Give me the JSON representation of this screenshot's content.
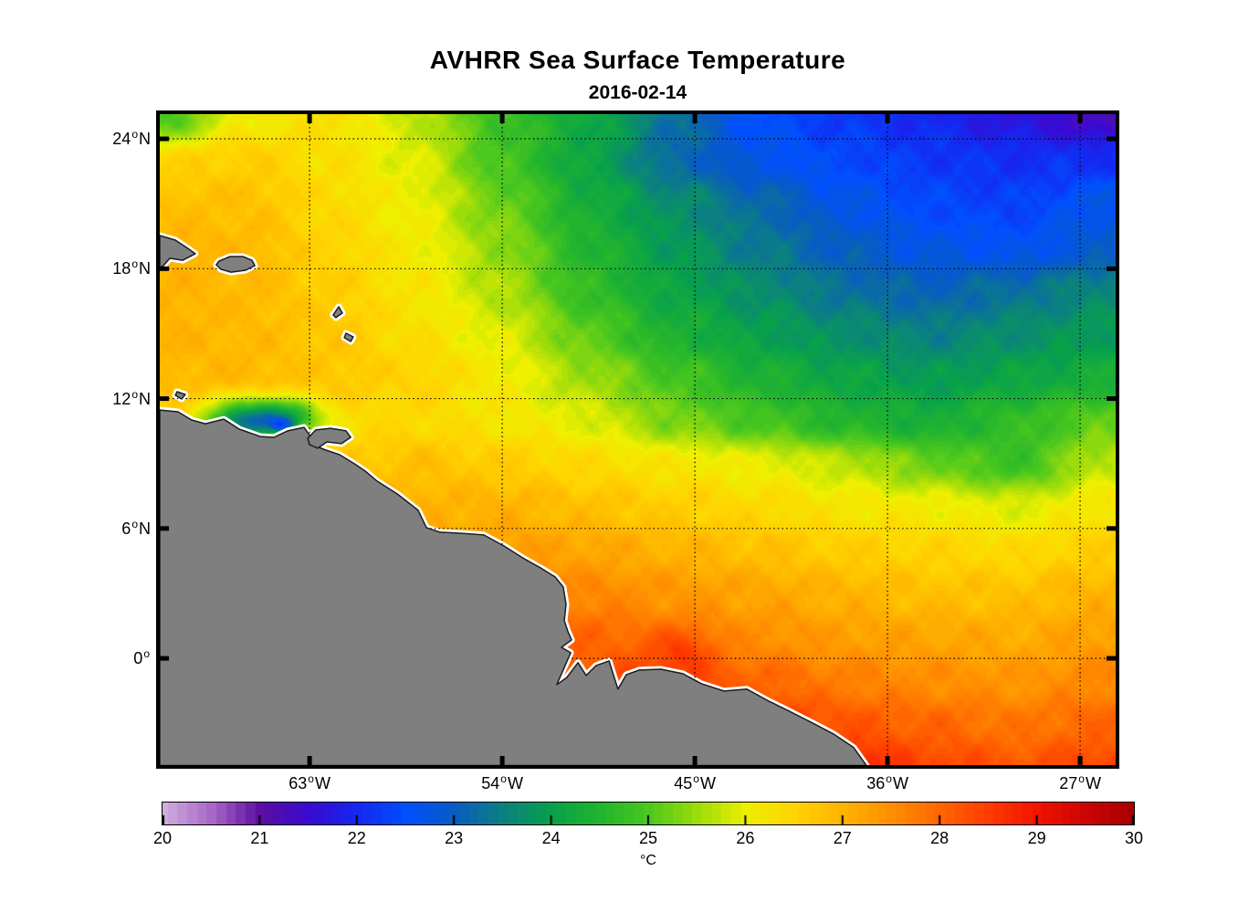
{
  "figure": {
    "title": "AVHRR Sea Surface Temperature",
    "subtitle": "2016-02-14"
  },
  "chart_data": {
    "type": "heatmap",
    "title": "AVHRR Sea Surface Temperature",
    "subtitle": "2016-02-14",
    "legend_position": "bottom colorbar",
    "grid_on": true,
    "extent": {
      "lon": [
        -70.0,
        -25.34
      ],
      "lat": [
        -4.93,
        25.14
      ]
    },
    "axes": {
      "deg": "o",
      "lat_ticks": [
        {
          "v": 24,
          "num": "24",
          "suffix": "N"
        },
        {
          "v": 18,
          "num": "18",
          "suffix": "N"
        },
        {
          "v": 12,
          "num": "12",
          "suffix": "N"
        },
        {
          "v": 6,
          "num": "6",
          "suffix": "N"
        },
        {
          "v": 0,
          "num": "0",
          "suffix": ""
        }
      ],
      "lon_ticks": [
        {
          "v": -63,
          "num": "63",
          "suffix": "W"
        },
        {
          "v": -54,
          "num": "54",
          "suffix": "W"
        },
        {
          "v": -45,
          "num": "45",
          "suffix": "W"
        },
        {
          "v": -36,
          "num": "36",
          "suffix": "W"
        },
        {
          "v": -27,
          "num": "27",
          "suffix": "W"
        }
      ]
    },
    "colorbar": {
      "min": 20,
      "max": 30,
      "ticks": [
        20,
        21,
        22,
        23,
        24,
        25,
        26,
        27,
        28,
        29,
        30
      ],
      "unit": "°C"
    },
    "colormap": [
      [
        20.0,
        "#cfaede"
      ],
      [
        20.5,
        "#a968c8"
      ],
      [
        21.0,
        "#5c0fa0"
      ],
      [
        21.5,
        "#3b0ad0"
      ],
      [
        22.0,
        "#1527f0"
      ],
      [
        22.5,
        "#0050ff"
      ],
      [
        23.0,
        "#095cc2"
      ],
      [
        23.5,
        "#0b8080"
      ],
      [
        24.0,
        "#08a14b"
      ],
      [
        24.5,
        "#22b42e"
      ],
      [
        25.0,
        "#4cc81e"
      ],
      [
        25.5,
        "#9cdc0a"
      ],
      [
        26.0,
        "#eef000"
      ],
      [
        26.5,
        "#ffd400"
      ],
      [
        27.0,
        "#ffb300"
      ],
      [
        27.5,
        "#ff8f00"
      ],
      [
        28.0,
        "#ff6600"
      ],
      [
        28.5,
        "#ff3c00"
      ],
      [
        29.0,
        "#f21300"
      ],
      [
        29.5,
        "#cd0404"
      ],
      [
        30.0,
        "#a50000"
      ]
    ],
    "grid": {
      "lons": [
        -70,
        -66,
        -62,
        -58,
        -54,
        -50,
        -46,
        -42,
        -38,
        -34,
        -30,
        -26
      ],
      "lats": [
        25,
        23,
        21,
        19,
        17,
        15,
        13,
        11,
        9,
        7,
        5,
        3,
        1,
        -1,
        -3,
        -5
      ],
      "sst": [
        [
          24.9,
          26.1,
          26.3,
          25.7,
          24.8,
          24.2,
          23.3,
          22.5,
          22.2,
          22.0,
          21.7,
          21.3
        ],
        [
          26.5,
          26.6,
          26.3,
          25.9,
          24.9,
          24.1,
          23.2,
          22.7,
          22.4,
          22.2,
          22.1,
          22.1
        ],
        [
          26.8,
          26.8,
          26.4,
          26.0,
          25.2,
          24.3,
          23.7,
          23.2,
          22.7,
          22.4,
          22.3,
          22.7
        ],
        [
          27.0,
          26.9,
          26.5,
          26.1,
          25.4,
          24.5,
          23.9,
          23.4,
          23.0,
          22.7,
          22.6,
          22.9
        ],
        [
          27.0,
          26.9,
          26.6,
          26.2,
          25.6,
          24.7,
          24.1,
          23.7,
          23.3,
          23.1,
          23.3,
          23.6
        ],
        [
          27.0,
          26.9,
          26.7,
          26.3,
          25.9,
          25.1,
          24.4,
          24.0,
          23.7,
          23.5,
          23.7,
          23.9
        ],
        [
          26.9,
          26.9,
          26.7,
          26.5,
          26.1,
          25.5,
          24.9,
          24.4,
          24.1,
          23.9,
          24.1,
          24.3
        ],
        [
          26.6,
          25.0,
          26.4,
          26.4,
          26.2,
          25.9,
          25.3,
          24.9,
          24.5,
          24.3,
          24.7,
          25.1
        ],
        [
          26.5,
          26.5,
          26.6,
          26.8,
          26.6,
          26.4,
          26.2,
          26.0,
          25.7,
          25.2,
          24.8,
          25.7
        ],
        [
          26.6,
          26.7,
          26.9,
          27.0,
          27.0,
          26.8,
          26.6,
          26.4,
          26.2,
          26.1,
          25.9,
          26.2
        ],
        [
          26.8,
          26.9,
          27.1,
          27.2,
          27.3,
          27.2,
          27.0,
          26.8,
          26.6,
          26.5,
          26.4,
          26.6
        ],
        [
          27.0,
          27.1,
          27.3,
          27.4,
          27.6,
          27.6,
          27.4,
          27.2,
          27.0,
          26.8,
          26.8,
          27.0
        ],
        [
          27.2,
          27.3,
          27.5,
          27.7,
          27.9,
          28.0,
          27.8,
          27.5,
          27.3,
          27.2,
          27.1,
          27.3
        ],
        [
          27.4,
          27.5,
          27.7,
          27.9,
          28.1,
          28.2,
          28.4,
          28.0,
          27.7,
          27.5,
          27.4,
          27.6
        ],
        [
          27.6,
          27.7,
          27.9,
          28.1,
          28.3,
          28.5,
          28.6,
          28.6,
          28.2,
          28.0,
          27.8,
          28.0
        ],
        [
          27.8,
          27.9,
          28.1,
          28.3,
          28.5,
          28.7,
          28.9,
          28.9,
          28.8,
          28.4,
          28.2,
          28.4
        ]
      ]
    },
    "blobs": [
      {
        "lon": -64.4,
        "lat": 11.1,
        "rx": 1.9,
        "ry": 0.85,
        "amp": -2.0
      },
      {
        "lon": -64.3,
        "lat": 10.8,
        "rx": 0.55,
        "ry": 0.3,
        "amp": -1.4
      },
      {
        "lon": -66.5,
        "lat": 10.9,
        "rx": 1.3,
        "ry": 0.6,
        "amp": -0.9
      },
      {
        "lon": -45.7,
        "lat": 0.5,
        "rx": 1.6,
        "ry": 0.9,
        "amp": 0.6
      }
    ],
    "noise_amp": 0.2,
    "land": {
      "color": "#7f7f7f",
      "outline": "#1c1c1c",
      "halo": "#ffffff",
      "polygons": [
        {
          "name": "south-america",
          "pts": [
            [
              -70,
              11.47
            ],
            [
              -69.15,
              11.39
            ],
            [
              -68.51,
              11.01
            ],
            [
              -67.87,
              10.84
            ],
            [
              -67.01,
              11.05
            ],
            [
              -66.29,
              10.59
            ],
            [
              -65.31,
              10.25
            ],
            [
              -64.67,
              10.21
            ],
            [
              -64.03,
              10.51
            ],
            [
              -63.26,
              10.67
            ],
            [
              -62.96,
              10.25
            ],
            [
              -62.66,
              9.79
            ],
            [
              -62.24,
              9.62
            ],
            [
              -61.6,
              9.41
            ],
            [
              -60.91,
              8.99
            ],
            [
              -60.4,
              8.65
            ],
            [
              -59.85,
              8.19
            ],
            [
              -58.91,
              7.6
            ],
            [
              -57.93,
              6.84
            ],
            [
              -57.54,
              6.04
            ],
            [
              -56.9,
              5.83
            ],
            [
              -55.92,
              5.78
            ],
            [
              -54.86,
              5.7
            ],
            [
              -53.92,
              5.19
            ],
            [
              -53.06,
              4.65
            ],
            [
              -52.21,
              4.18
            ],
            [
              -51.53,
              3.76
            ],
            [
              -51.15,
              3.3
            ],
            [
              -51.02,
              2.5
            ],
            [
              -51.1,
              1.74
            ],
            [
              -50.93,
              1.23
            ],
            [
              -50.76,
              0.85
            ],
            [
              -51.23,
              0.51
            ],
            [
              -50.8,
              0.26
            ],
            [
              -51.45,
              -1.21
            ],
            [
              -50.98,
              -0.88
            ],
            [
              -50.46,
              -0.2
            ],
            [
              -50.08,
              -0.79
            ],
            [
              -49.61,
              -0.33
            ],
            [
              -49.01,
              -0.12
            ],
            [
              -48.59,
              -1.42
            ],
            [
              -48.2,
              -0.75
            ],
            [
              -47.6,
              -0.54
            ],
            [
              -46.58,
              -0.5
            ],
            [
              -45.56,
              -0.71
            ],
            [
              -44.7,
              -1.17
            ],
            [
              -43.64,
              -1.51
            ],
            [
              -42.57,
              -1.42
            ],
            [
              -41.63,
              -1.93
            ],
            [
              -40.61,
              -2.43
            ],
            [
              -39.59,
              -2.94
            ],
            [
              -38.52,
              -3.49
            ],
            [
              -37.58,
              -4.12
            ],
            [
              -36.98,
              -4.95
            ],
            [
              -70,
              -4.95
            ]
          ]
        },
        {
          "name": "trinidad",
          "pts": [
            [
              -63.09,
              10.16
            ],
            [
              -62.71,
              10.55
            ],
            [
              -62.02,
              10.63
            ],
            [
              -61.3,
              10.51
            ],
            [
              -61.08,
              10.21
            ],
            [
              -61.51,
              9.92
            ],
            [
              -62.19,
              10.0
            ],
            [
              -62.62,
              9.71
            ],
            [
              -63.0,
              9.87
            ]
          ]
        },
        {
          "name": "hispaniola-east",
          "pts": [
            [
              -70.0,
              19.53
            ],
            [
              -69.27,
              19.32
            ],
            [
              -68.81,
              19.02
            ],
            [
              -68.34,
              18.69
            ],
            [
              -68.93,
              18.39
            ],
            [
              -69.53,
              18.48
            ],
            [
              -69.83,
              18.14
            ],
            [
              -70.0,
              18.05
            ]
          ]
        },
        {
          "name": "puerto-rico",
          "pts": [
            [
              -67.23,
              18.35
            ],
            [
              -66.72,
              18.56
            ],
            [
              -66.12,
              18.56
            ],
            [
              -65.69,
              18.39
            ],
            [
              -65.56,
              18.14
            ],
            [
              -65.99,
              17.93
            ],
            [
              -66.67,
              17.84
            ],
            [
              -67.14,
              17.97
            ],
            [
              -67.36,
              18.18
            ]
          ]
        },
        {
          "name": "guadeloupe",
          "pts": [
            [
              -61.9,
              15.86
            ],
            [
              -61.64,
              16.24
            ],
            [
              -61.47,
              15.95
            ],
            [
              -61.77,
              15.74
            ]
          ]
        },
        {
          "name": "martinique",
          "pts": [
            [
              -61.3,
              15.02
            ],
            [
              -60.96,
              14.85
            ],
            [
              -61.08,
              14.64
            ],
            [
              -61.38,
              14.81
            ]
          ]
        },
        {
          "name": "curacao",
          "pts": [
            [
              -69.19,
              12.32
            ],
            [
              -68.81,
              12.19
            ],
            [
              -68.98,
              11.98
            ],
            [
              -69.27,
              12.15
            ]
          ]
        }
      ]
    }
  }
}
